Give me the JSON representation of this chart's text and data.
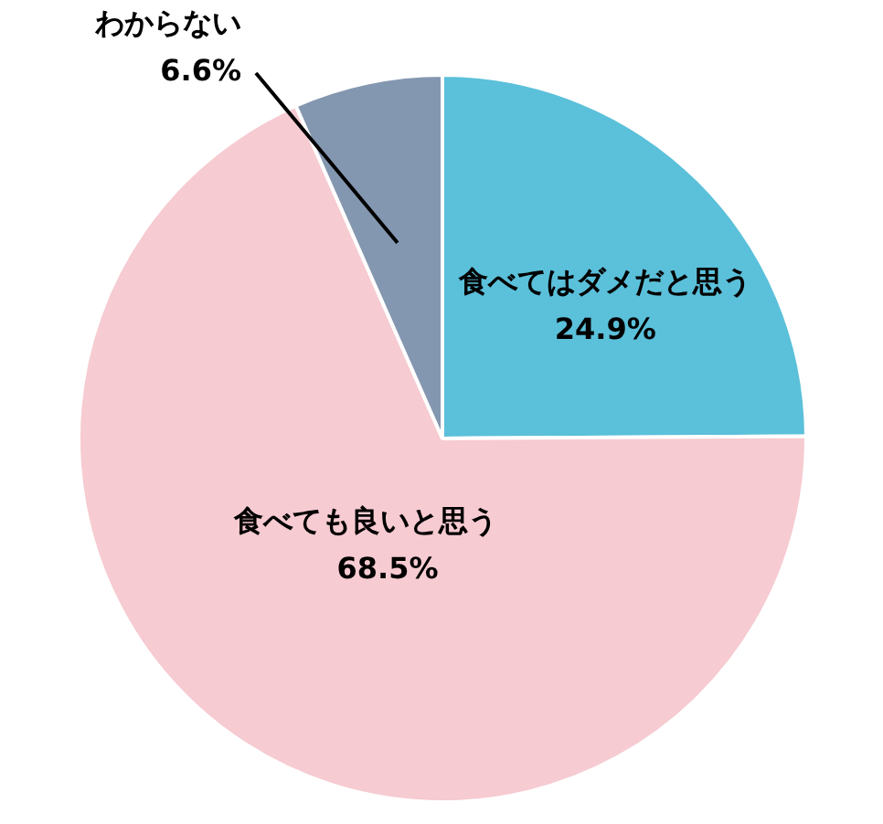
{
  "chart_data": {
    "type": "pie",
    "categories": [
      "食べてはダメだと思う",
      "食べても良いと思う",
      "わからない"
    ],
    "values": [
      24.9,
      68.5,
      6.6
    ],
    "colors": [
      "#5bc0da",
      "#f6cbd1",
      "#8497b0"
    ],
    "value_labels": [
      "24.9%",
      "68.5%",
      "6.6%"
    ],
    "legend": false
  }
}
